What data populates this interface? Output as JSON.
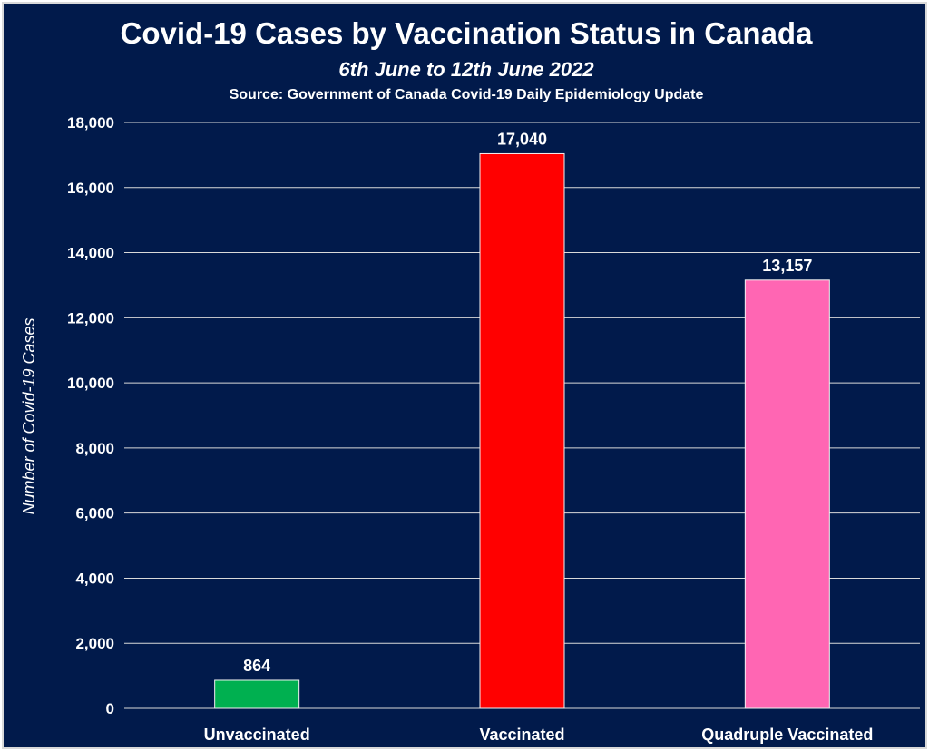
{
  "chart_data": {
    "type": "bar",
    "title": "Covid-19 Cases by Vaccination Status in Canada",
    "subtitle": "6th June to 12th June 2022",
    "source": "Source: Government of Canada  Covid-19 Daily Epidemiology Update",
    "xlabel": "",
    "ylabel": "Number of Covid-19 Cases",
    "categories": [
      "Unvaccinated",
      "Vaccinated",
      "Quadruple Vaccinated"
    ],
    "values": [
      864,
      17040,
      13157
    ],
    "data_labels": [
      "864",
      "17,040",
      "13,157"
    ],
    "bar_colors": [
      "#00B050",
      "#FF0000",
      "#FF66B3"
    ],
    "ylim": [
      0,
      18000
    ],
    "yticks": [
      0,
      2000,
      4000,
      6000,
      8000,
      10000,
      12000,
      14000,
      16000,
      18000
    ],
    "ytick_labels": [
      "0",
      "2,000",
      "4,000",
      "6,000",
      "8,000",
      "10,000",
      "12,000",
      "14,000",
      "16,000",
      "18,000"
    ],
    "grid": true,
    "legend": "none",
    "background_color": "#011A4B",
    "text_color": "#FFFFFF",
    "grid_color": "#D9D9D9"
  }
}
